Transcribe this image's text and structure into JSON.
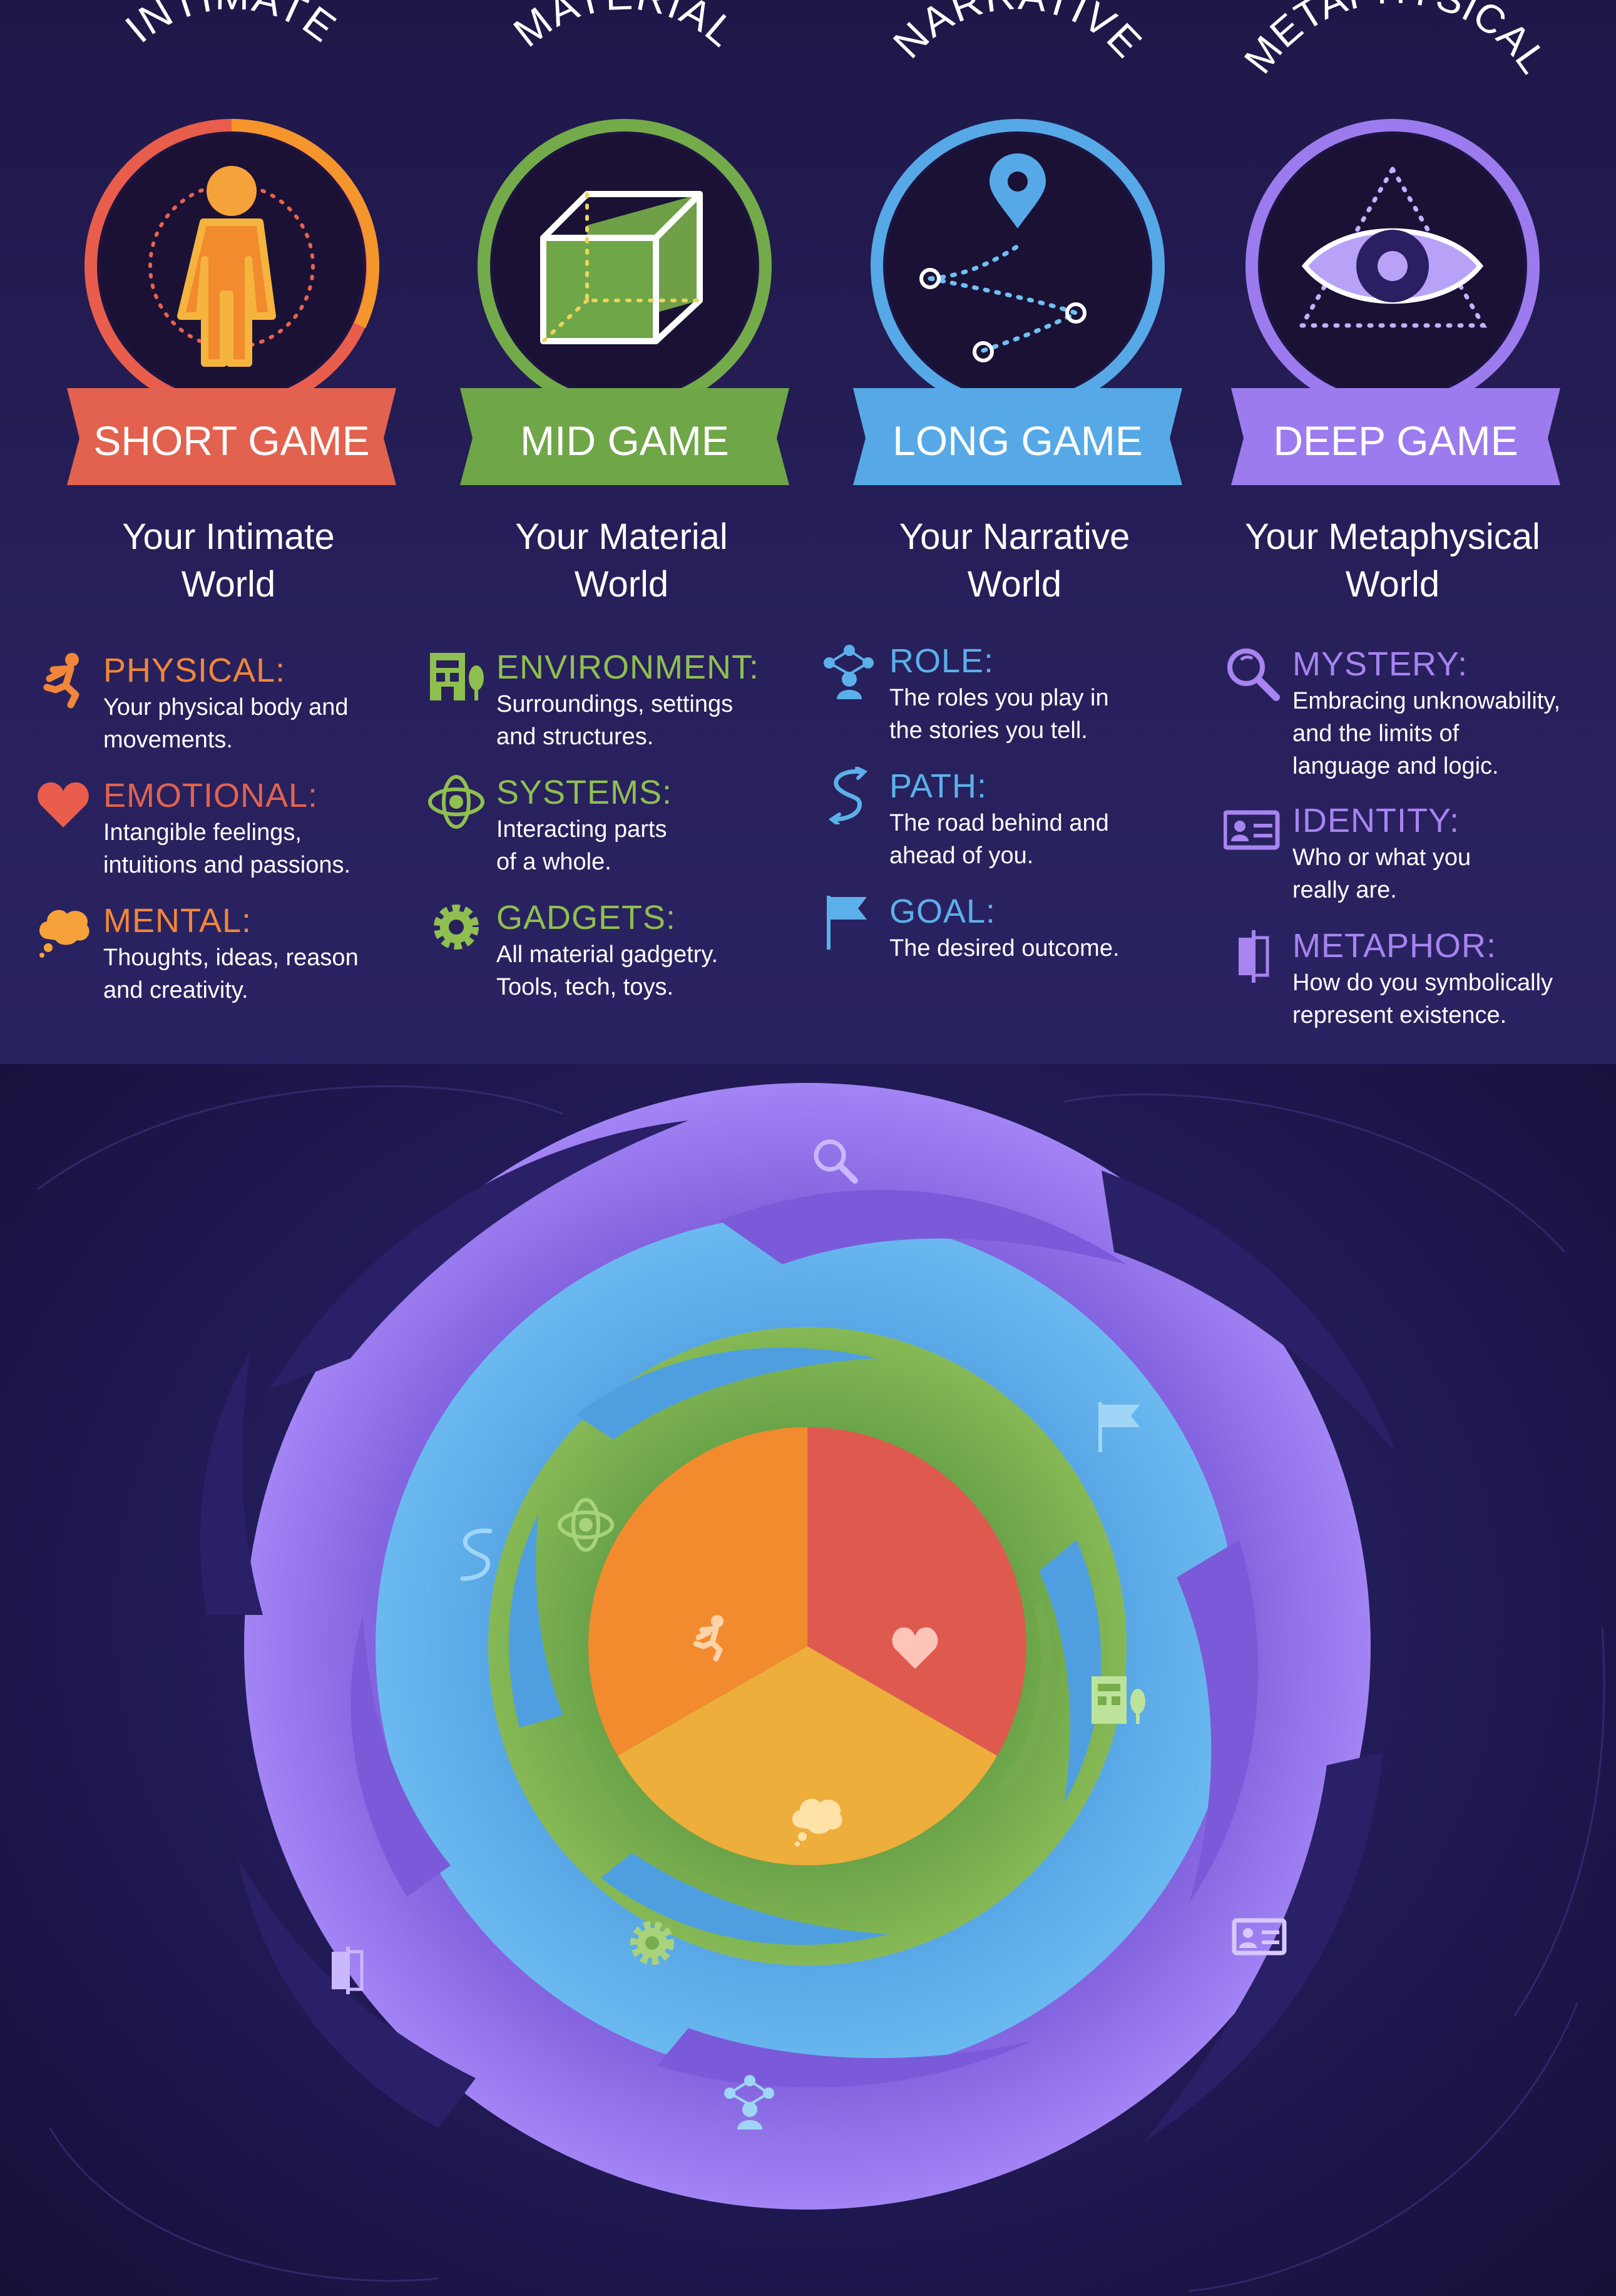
{
  "columns": [
    {
      "arc_title": "INTIMATE",
      "badge": "SHORT GAME",
      "subtitle_line1": "Your Intimate",
      "subtitle_line2": "World",
      "color": "#f0863a",
      "badge_color": "#e2624f",
      "items": [
        {
          "icon": "running-person-icon",
          "heading": "PHYSICAL:",
          "desc1": "Your physical body and",
          "desc2": "movements.",
          "desc3": ""
        },
        {
          "icon": "heart-icon",
          "heading": "EMOTIONAL:",
          "desc1": "Intangible feelings,",
          "desc2": "intuitions and passions.",
          "desc3": ""
        },
        {
          "icon": "thought-bubble-icon",
          "heading": "MENTAL:",
          "desc1": "Thoughts, ideas, reason",
          "desc2": "and creativity.",
          "desc3": ""
        }
      ]
    },
    {
      "arc_title": "MATERIAL",
      "badge": "MID GAME",
      "subtitle_line1": "Your Material",
      "subtitle_line2": "World",
      "color": "#8fbf4f",
      "badge_color": "#6fa648",
      "items": [
        {
          "icon": "building-tree-icon",
          "heading": "ENVIRONMENT:",
          "desc1": "Surroundings, settings",
          "desc2": "and structures.",
          "desc3": ""
        },
        {
          "icon": "orbit-icon",
          "heading": "SYSTEMS:",
          "desc1": "Interacting parts",
          "desc2": "of a whole.",
          "desc3": ""
        },
        {
          "icon": "gear-icon",
          "heading": "GADGETS:",
          "desc1": "All material gadgetry.",
          "desc2": "Tools, tech, toys.",
          "desc3": ""
        }
      ]
    },
    {
      "arc_title": "NARRATIVE",
      "badge": "LONG GAME",
      "subtitle_line1": "Your Narrative",
      "subtitle_line2": "World",
      "color": "#5cb0ea",
      "badge_color": "#56a9e6",
      "items": [
        {
          "icon": "role-network-icon",
          "heading": "ROLE:",
          "desc1": "The roles you play in",
          "desc2": "the stories you tell.",
          "desc3": ""
        },
        {
          "icon": "path-icon",
          "heading": "PATH:",
          "desc1": "The road behind and",
          "desc2": "ahead of you.",
          "desc3": ""
        },
        {
          "icon": "flag-icon",
          "heading": "GOAL:",
          "desc1": "The desired outcome.",
          "desc2": "",
          "desc3": ""
        }
      ]
    },
    {
      "arc_title": "METAPHYSICAL",
      "badge": "DEEP GAME",
      "subtitle_line1": "Your Metaphysical",
      "subtitle_line2": "World",
      "color": "#a784f0",
      "badge_color": "#9c7bee",
      "items": [
        {
          "icon": "magnifier-icon",
          "heading": "MYSTERY:",
          "desc1": "Embracing unknowability,",
          "desc2": "and the limits of",
          "desc3": "language and logic."
        },
        {
          "icon": "id-card-icon",
          "heading": "IDENTITY:",
          "desc1": "Who or what you",
          "desc2": "really are.",
          "desc3": ""
        },
        {
          "icon": "mirror-icon",
          "heading": "METAPHOR:",
          "desc1": "How do you symbolically",
          "desc2": "represent existence.",
          "desc3": ""
        }
      ]
    }
  ],
  "rings": {
    "outer_color": "#8f6fe6",
    "second_color": "#5aaee6",
    "third_color": "#78ad4e",
    "pie_colors": [
      "#f28a2e",
      "#de5a4f",
      "#eeae3c"
    ],
    "pie_values": [
      1,
      1,
      1
    ]
  }
}
